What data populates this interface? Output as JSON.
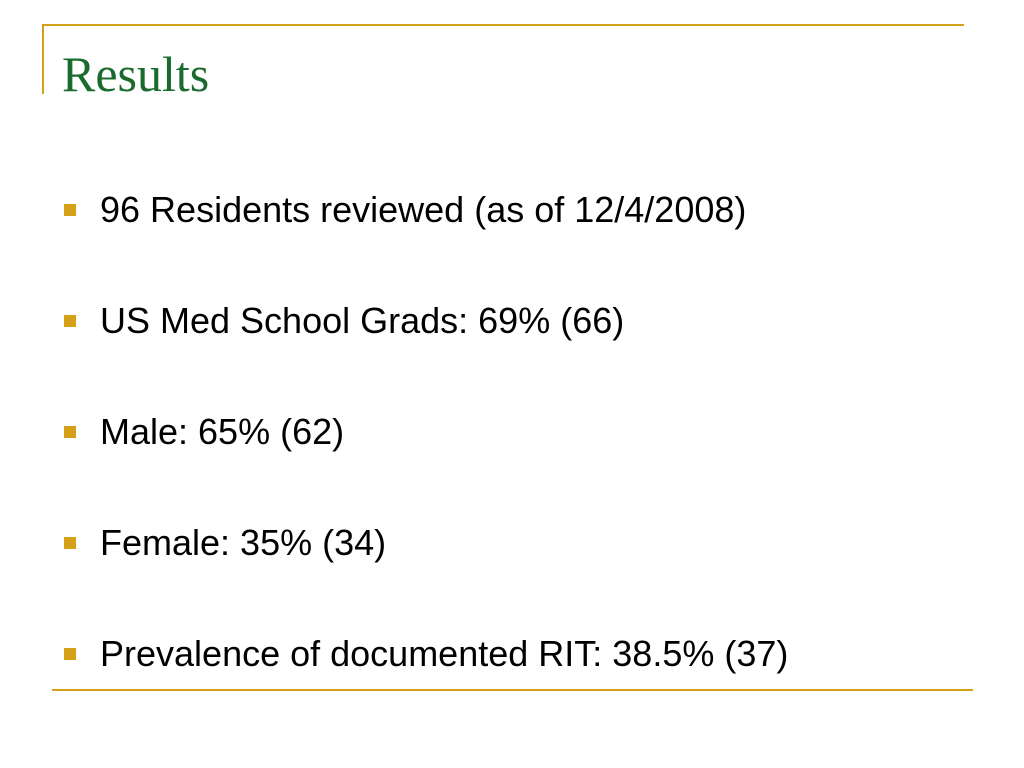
{
  "slide": {
    "title": "Results",
    "bullets": [
      {
        "text": "96 Residents reviewed (as of 12/4/2008)"
      },
      {
        "text": "US Med School Grads: 69% (66)"
      },
      {
        "text": "Male: 65% (62)"
      },
      {
        "text": "Female: 35% (34)"
      },
      {
        "text": "Prevalence of documented RIT: 38.5% (37)"
      }
    ]
  },
  "colors": {
    "title": "#1b6b2e",
    "accent": "#d4a017",
    "text": "#000000",
    "background": "#ffffff"
  },
  "icons": {
    "bullet": "square-bullet-icon"
  }
}
